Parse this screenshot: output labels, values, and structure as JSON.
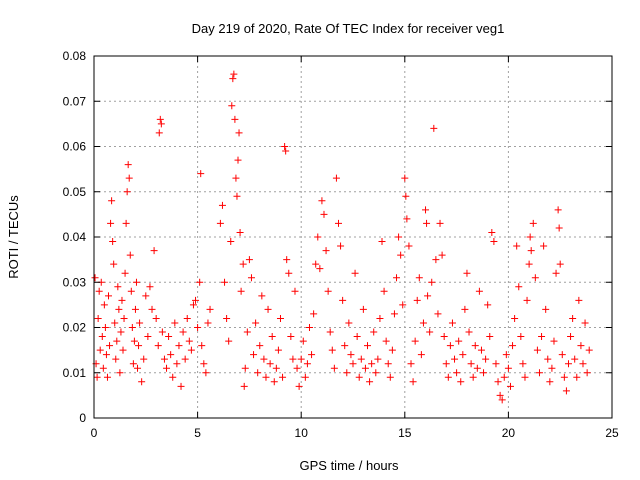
{
  "chart_data": {
    "type": "scatter",
    "title": "Day 219 of 2020, Rate Of TEC Index for receiver veg1",
    "xlabel": "GPS time / hours",
    "ylabel": "ROTI / TECUs",
    "xlim": [
      0,
      25
    ],
    "ylim": [
      0,
      0.08
    ],
    "x_ticks": [
      0,
      5,
      10,
      15,
      20,
      25
    ],
    "x_tick_labels": [
      "0",
      "5",
      "10",
      "15",
      "20",
      "25"
    ],
    "y_ticks": [
      0,
      0.01,
      0.02,
      0.03,
      0.04,
      0.05,
      0.06,
      0.07,
      0.08
    ],
    "y_tick_labels": [
      "0",
      "0.01",
      "0.02",
      "0.03",
      "0.04",
      "0.05",
      "0.06",
      "0.07",
      "0.08"
    ],
    "grid": true,
    "marker": "+",
    "color": "#ff0000",
    "series": [
      {
        "name": "veg1",
        "points": [
          [
            0.05,
            0.031
          ],
          [
            0.1,
            0.012
          ],
          [
            0.15,
            0.009
          ],
          [
            0.2,
            0.022
          ],
          [
            0.25,
            0.028
          ],
          [
            0.3,
            0.015
          ],
          [
            0.35,
            0.03
          ],
          [
            0.4,
            0.018
          ],
          [
            0.45,
            0.011
          ],
          [
            0.5,
            0.025
          ],
          [
            0.55,
            0.02
          ],
          [
            0.6,
            0.014
          ],
          [
            0.65,
            0.009
          ],
          [
            0.7,
            0.027
          ],
          [
            0.75,
            0.016
          ],
          [
            0.8,
            0.043
          ],
          [
            0.85,
            0.048
          ],
          [
            0.9,
            0.039
          ],
          [
            0.95,
            0.034
          ],
          [
            1.0,
            0.021
          ],
          [
            1.05,
            0.013
          ],
          [
            1.1,
            0.017
          ],
          [
            1.15,
            0.029
          ],
          [
            1.2,
            0.024
          ],
          [
            1.25,
            0.01
          ],
          [
            1.3,
            0.019
          ],
          [
            1.35,
            0.026
          ],
          [
            1.4,
            0.015
          ],
          [
            1.45,
            0.022
          ],
          [
            1.5,
            0.032
          ],
          [
            1.55,
            0.043
          ],
          [
            1.6,
            0.05
          ],
          [
            1.65,
            0.056
          ],
          [
            1.7,
            0.053
          ],
          [
            1.75,
            0.036
          ],
          [
            1.8,
            0.028
          ],
          [
            1.85,
            0.02
          ],
          [
            1.9,
            0.012
          ],
          [
            1.95,
            0.017
          ],
          [
            2.0,
            0.024
          ],
          [
            2.05,
            0.03
          ],
          [
            2.1,
            0.011
          ],
          [
            2.15,
            0.016
          ],
          [
            2.2,
            0.021
          ],
          [
            2.3,
            0.008
          ],
          [
            2.4,
            0.013
          ],
          [
            2.5,
            0.027
          ],
          [
            2.6,
            0.018
          ],
          [
            2.7,
            0.029
          ],
          [
            2.8,
            0.024
          ],
          [
            2.9,
            0.037
          ],
          [
            3.0,
            0.022
          ],
          [
            3.1,
            0.016
          ],
          [
            3.15,
            0.063
          ],
          [
            3.2,
            0.066
          ],
          [
            3.25,
            0.065
          ],
          [
            3.3,
            0.019
          ],
          [
            3.4,
            0.013
          ],
          [
            3.5,
            0.011
          ],
          [
            3.6,
            0.018
          ],
          [
            3.7,
            0.014
          ],
          [
            3.8,
            0.009
          ],
          [
            3.9,
            0.021
          ],
          [
            4.0,
            0.012
          ],
          [
            4.1,
            0.016
          ],
          [
            4.2,
            0.007
          ],
          [
            4.3,
            0.019
          ],
          [
            4.4,
            0.013
          ],
          [
            4.5,
            0.022
          ],
          [
            4.6,
            0.017
          ],
          [
            4.7,
            0.015
          ],
          [
            4.8,
            0.025
          ],
          [
            4.9,
            0.026
          ],
          [
            5.0,
            0.02
          ],
          [
            5.1,
            0.03
          ],
          [
            5.15,
            0.054
          ],
          [
            5.2,
            0.016
          ],
          [
            5.3,
            0.012
          ],
          [
            5.4,
            0.01
          ],
          [
            5.5,
            0.021
          ],
          [
            5.6,
            0.024
          ],
          [
            6.1,
            0.043
          ],
          [
            6.2,
            0.047
          ],
          [
            6.3,
            0.03
          ],
          [
            6.4,
            0.022
          ],
          [
            6.5,
            0.017
          ],
          [
            6.6,
            0.039
          ],
          [
            6.65,
            0.069
          ],
          [
            6.7,
            0.075
          ],
          [
            6.75,
            0.076
          ],
          [
            6.8,
            0.066
          ],
          [
            6.85,
            0.053
          ],
          [
            6.9,
            0.049
          ],
          [
            6.95,
            0.057
          ],
          [
            7.0,
            0.063
          ],
          [
            7.05,
            0.041
          ],
          [
            7.1,
            0.028
          ],
          [
            7.2,
            0.034
          ],
          [
            7.25,
            0.007
          ],
          [
            7.3,
            0.011
          ],
          [
            7.4,
            0.019
          ],
          [
            7.5,
            0.035
          ],
          [
            7.6,
            0.031
          ],
          [
            7.7,
            0.014
          ],
          [
            7.8,
            0.021
          ],
          [
            7.9,
            0.01
          ],
          [
            8.0,
            0.016
          ],
          [
            8.1,
            0.027
          ],
          [
            8.2,
            0.013
          ],
          [
            8.3,
            0.009
          ],
          [
            8.4,
            0.024
          ],
          [
            8.5,
            0.012
          ],
          [
            8.6,
            0.018
          ],
          [
            8.7,
            0.008
          ],
          [
            8.8,
            0.011
          ],
          [
            8.9,
            0.015
          ],
          [
            9.0,
            0.022
          ],
          [
            9.1,
            0.009
          ],
          [
            9.2,
            0.06
          ],
          [
            9.25,
            0.059
          ],
          [
            9.3,
            0.035
          ],
          [
            9.4,
            0.032
          ],
          [
            9.5,
            0.018
          ],
          [
            9.6,
            0.013
          ],
          [
            9.7,
            0.028
          ],
          [
            9.8,
            0.011
          ],
          [
            9.9,
            0.007
          ],
          [
            10.0,
            0.013
          ],
          [
            10.1,
            0.017
          ],
          [
            10.2,
            0.009
          ],
          [
            10.3,
            0.012
          ],
          [
            10.4,
            0.02
          ],
          [
            10.5,
            0.014
          ],
          [
            10.6,
            0.023
          ],
          [
            10.7,
            0.034
          ],
          [
            10.8,
            0.04
          ],
          [
            10.9,
            0.033
          ],
          [
            11.0,
            0.048
          ],
          [
            11.1,
            0.045
          ],
          [
            11.2,
            0.037
          ],
          [
            11.3,
            0.028
          ],
          [
            11.4,
            0.019
          ],
          [
            11.5,
            0.015
          ],
          [
            11.6,
            0.011
          ],
          [
            11.7,
            0.053
          ],
          [
            11.8,
            0.043
          ],
          [
            11.9,
            0.038
          ],
          [
            12.0,
            0.026
          ],
          [
            12.1,
            0.016
          ],
          [
            12.2,
            0.01
          ],
          [
            12.3,
            0.021
          ],
          [
            12.4,
            0.014
          ],
          [
            12.5,
            0.012
          ],
          [
            12.6,
            0.032
          ],
          [
            12.7,
            0.018
          ],
          [
            12.8,
            0.009
          ],
          [
            12.9,
            0.013
          ],
          [
            13.0,
            0.024
          ],
          [
            13.1,
            0.011
          ],
          [
            13.2,
            0.016
          ],
          [
            13.3,
            0.008
          ],
          [
            13.4,
            0.012
          ],
          [
            13.5,
            0.019
          ],
          [
            13.6,
            0.01
          ],
          [
            13.7,
            0.013
          ],
          [
            13.8,
            0.022
          ],
          [
            13.9,
            0.039
          ],
          [
            14.0,
            0.028
          ],
          [
            14.1,
            0.017
          ],
          [
            14.2,
            0.012
          ],
          [
            14.3,
            0.009
          ],
          [
            14.4,
            0.015
          ],
          [
            14.5,
            0.023
          ],
          [
            14.6,
            0.031
          ],
          [
            14.7,
            0.04
          ],
          [
            14.8,
            0.036
          ],
          [
            14.9,
            0.025
          ],
          [
            15.0,
            0.053
          ],
          [
            15.05,
            0.049
          ],
          [
            15.1,
            0.044
          ],
          [
            15.2,
            0.038
          ],
          [
            15.3,
            0.012
          ],
          [
            15.4,
            0.008
          ],
          [
            15.5,
            0.017
          ],
          [
            15.6,
            0.026
          ],
          [
            15.7,
            0.031
          ],
          [
            15.8,
            0.014
          ],
          [
            15.9,
            0.021
          ],
          [
            16.0,
            0.046
          ],
          [
            16.05,
            0.043
          ],
          [
            16.1,
            0.027
          ],
          [
            16.2,
            0.019
          ],
          [
            16.3,
            0.03
          ],
          [
            16.4,
            0.064
          ],
          [
            16.5,
            0.035
          ],
          [
            16.6,
            0.023
          ],
          [
            16.7,
            0.043
          ],
          [
            16.8,
            0.036
          ],
          [
            16.9,
            0.018
          ],
          [
            17.0,
            0.012
          ],
          [
            17.1,
            0.009
          ],
          [
            17.2,
            0.016
          ],
          [
            17.3,
            0.021
          ],
          [
            17.4,
            0.013
          ],
          [
            17.5,
            0.01
          ],
          [
            17.6,
            0.017
          ],
          [
            17.7,
            0.008
          ],
          [
            17.8,
            0.014
          ],
          [
            17.9,
            0.024
          ],
          [
            18.0,
            0.032
          ],
          [
            18.1,
            0.019
          ],
          [
            18.2,
            0.012
          ],
          [
            18.3,
            0.009
          ],
          [
            18.4,
            0.016
          ],
          [
            18.5,
            0.011
          ],
          [
            18.6,
            0.028
          ],
          [
            18.7,
            0.015
          ],
          [
            18.8,
            0.01
          ],
          [
            18.9,
            0.013
          ],
          [
            19.0,
            0.025
          ],
          [
            19.1,
            0.018
          ],
          [
            19.2,
            0.041
          ],
          [
            19.3,
            0.039
          ],
          [
            19.4,
            0.012
          ],
          [
            19.5,
            0.008
          ],
          [
            19.6,
            0.005
          ],
          [
            19.7,
            0.004
          ],
          [
            19.8,
            0.009
          ],
          [
            19.9,
            0.014
          ],
          [
            20.0,
            0.011
          ],
          [
            20.1,
            0.007
          ],
          [
            20.2,
            0.016
          ],
          [
            20.3,
            0.022
          ],
          [
            20.4,
            0.038
          ],
          [
            20.5,
            0.029
          ],
          [
            20.6,
            0.018
          ],
          [
            20.7,
            0.012
          ],
          [
            20.8,
            0.009
          ],
          [
            20.9,
            0.026
          ],
          [
            21.0,
            0.034
          ],
          [
            21.05,
            0.04
          ],
          [
            21.1,
            0.037
          ],
          [
            21.2,
            0.043
          ],
          [
            21.3,
            0.031
          ],
          [
            21.4,
            0.015
          ],
          [
            21.5,
            0.01
          ],
          [
            21.6,
            0.018
          ],
          [
            21.7,
            0.038
          ],
          [
            21.8,
            0.024
          ],
          [
            21.9,
            0.013
          ],
          [
            22.0,
            0.008
          ],
          [
            22.1,
            0.011
          ],
          [
            22.2,
            0.017
          ],
          [
            22.3,
            0.032
          ],
          [
            22.4,
            0.046
          ],
          [
            22.45,
            0.042
          ],
          [
            22.5,
            0.034
          ],
          [
            22.6,
            0.014
          ],
          [
            22.7,
            0.009
          ],
          [
            22.8,
            0.006
          ],
          [
            22.9,
            0.012
          ],
          [
            23.0,
            0.018
          ],
          [
            23.1,
            0.022
          ],
          [
            23.2,
            0.013
          ],
          [
            23.3,
            0.009
          ],
          [
            23.4,
            0.026
          ],
          [
            23.5,
            0.016
          ],
          [
            23.6,
            0.012
          ],
          [
            23.7,
            0.021
          ],
          [
            23.8,
            0.01
          ],
          [
            23.9,
            0.015
          ]
        ]
      }
    ]
  }
}
